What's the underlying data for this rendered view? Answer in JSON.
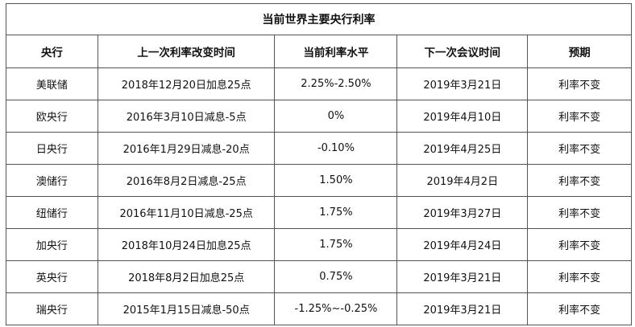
{
  "title": "当前世界主要央行利率",
  "headers": [
    "央行",
    "上一次利率改变时间",
    "当前利率水平",
    "下一次会议时间",
    "预期"
  ],
  "rows": [
    [
      "美联储",
      "2018年12月20日加息25点",
      "2.25%-2.50%",
      "2019年3月21日",
      "利率不变"
    ],
    [
      "欧央行",
      "2016年3月10日减息-5点",
      "0%",
      "2019年4月10日",
      "利率不变"
    ],
    [
      "日央行",
      "2016年1月29日减息-20点",
      "-0.10%",
      "2019年4月25日",
      "利率不变"
    ],
    [
      "澳储行",
      "2016年8月2日减息-25点",
      "1.50%",
      "2019年4月2日",
      "利率不变"
    ],
    [
      "纽储行",
      "2016年11月10日减息-25点",
      "1.75%",
      "2019年3月27日",
      "利率不变"
    ],
    [
      "加央行",
      "2018年10月24日加息25点",
      "1.75%",
      "2019年4月24日",
      "利率不变"
    ],
    [
      "英央行",
      "2018年8月2日加息25点",
      "0.75%",
      "2019年3月21日",
      "利率不变"
    ],
    [
      "瑞央行",
      "2015年1月15日减息-50点",
      "-1.25%~-0.25%",
      "2019年3月21日",
      "利率不变"
    ]
  ]
}
